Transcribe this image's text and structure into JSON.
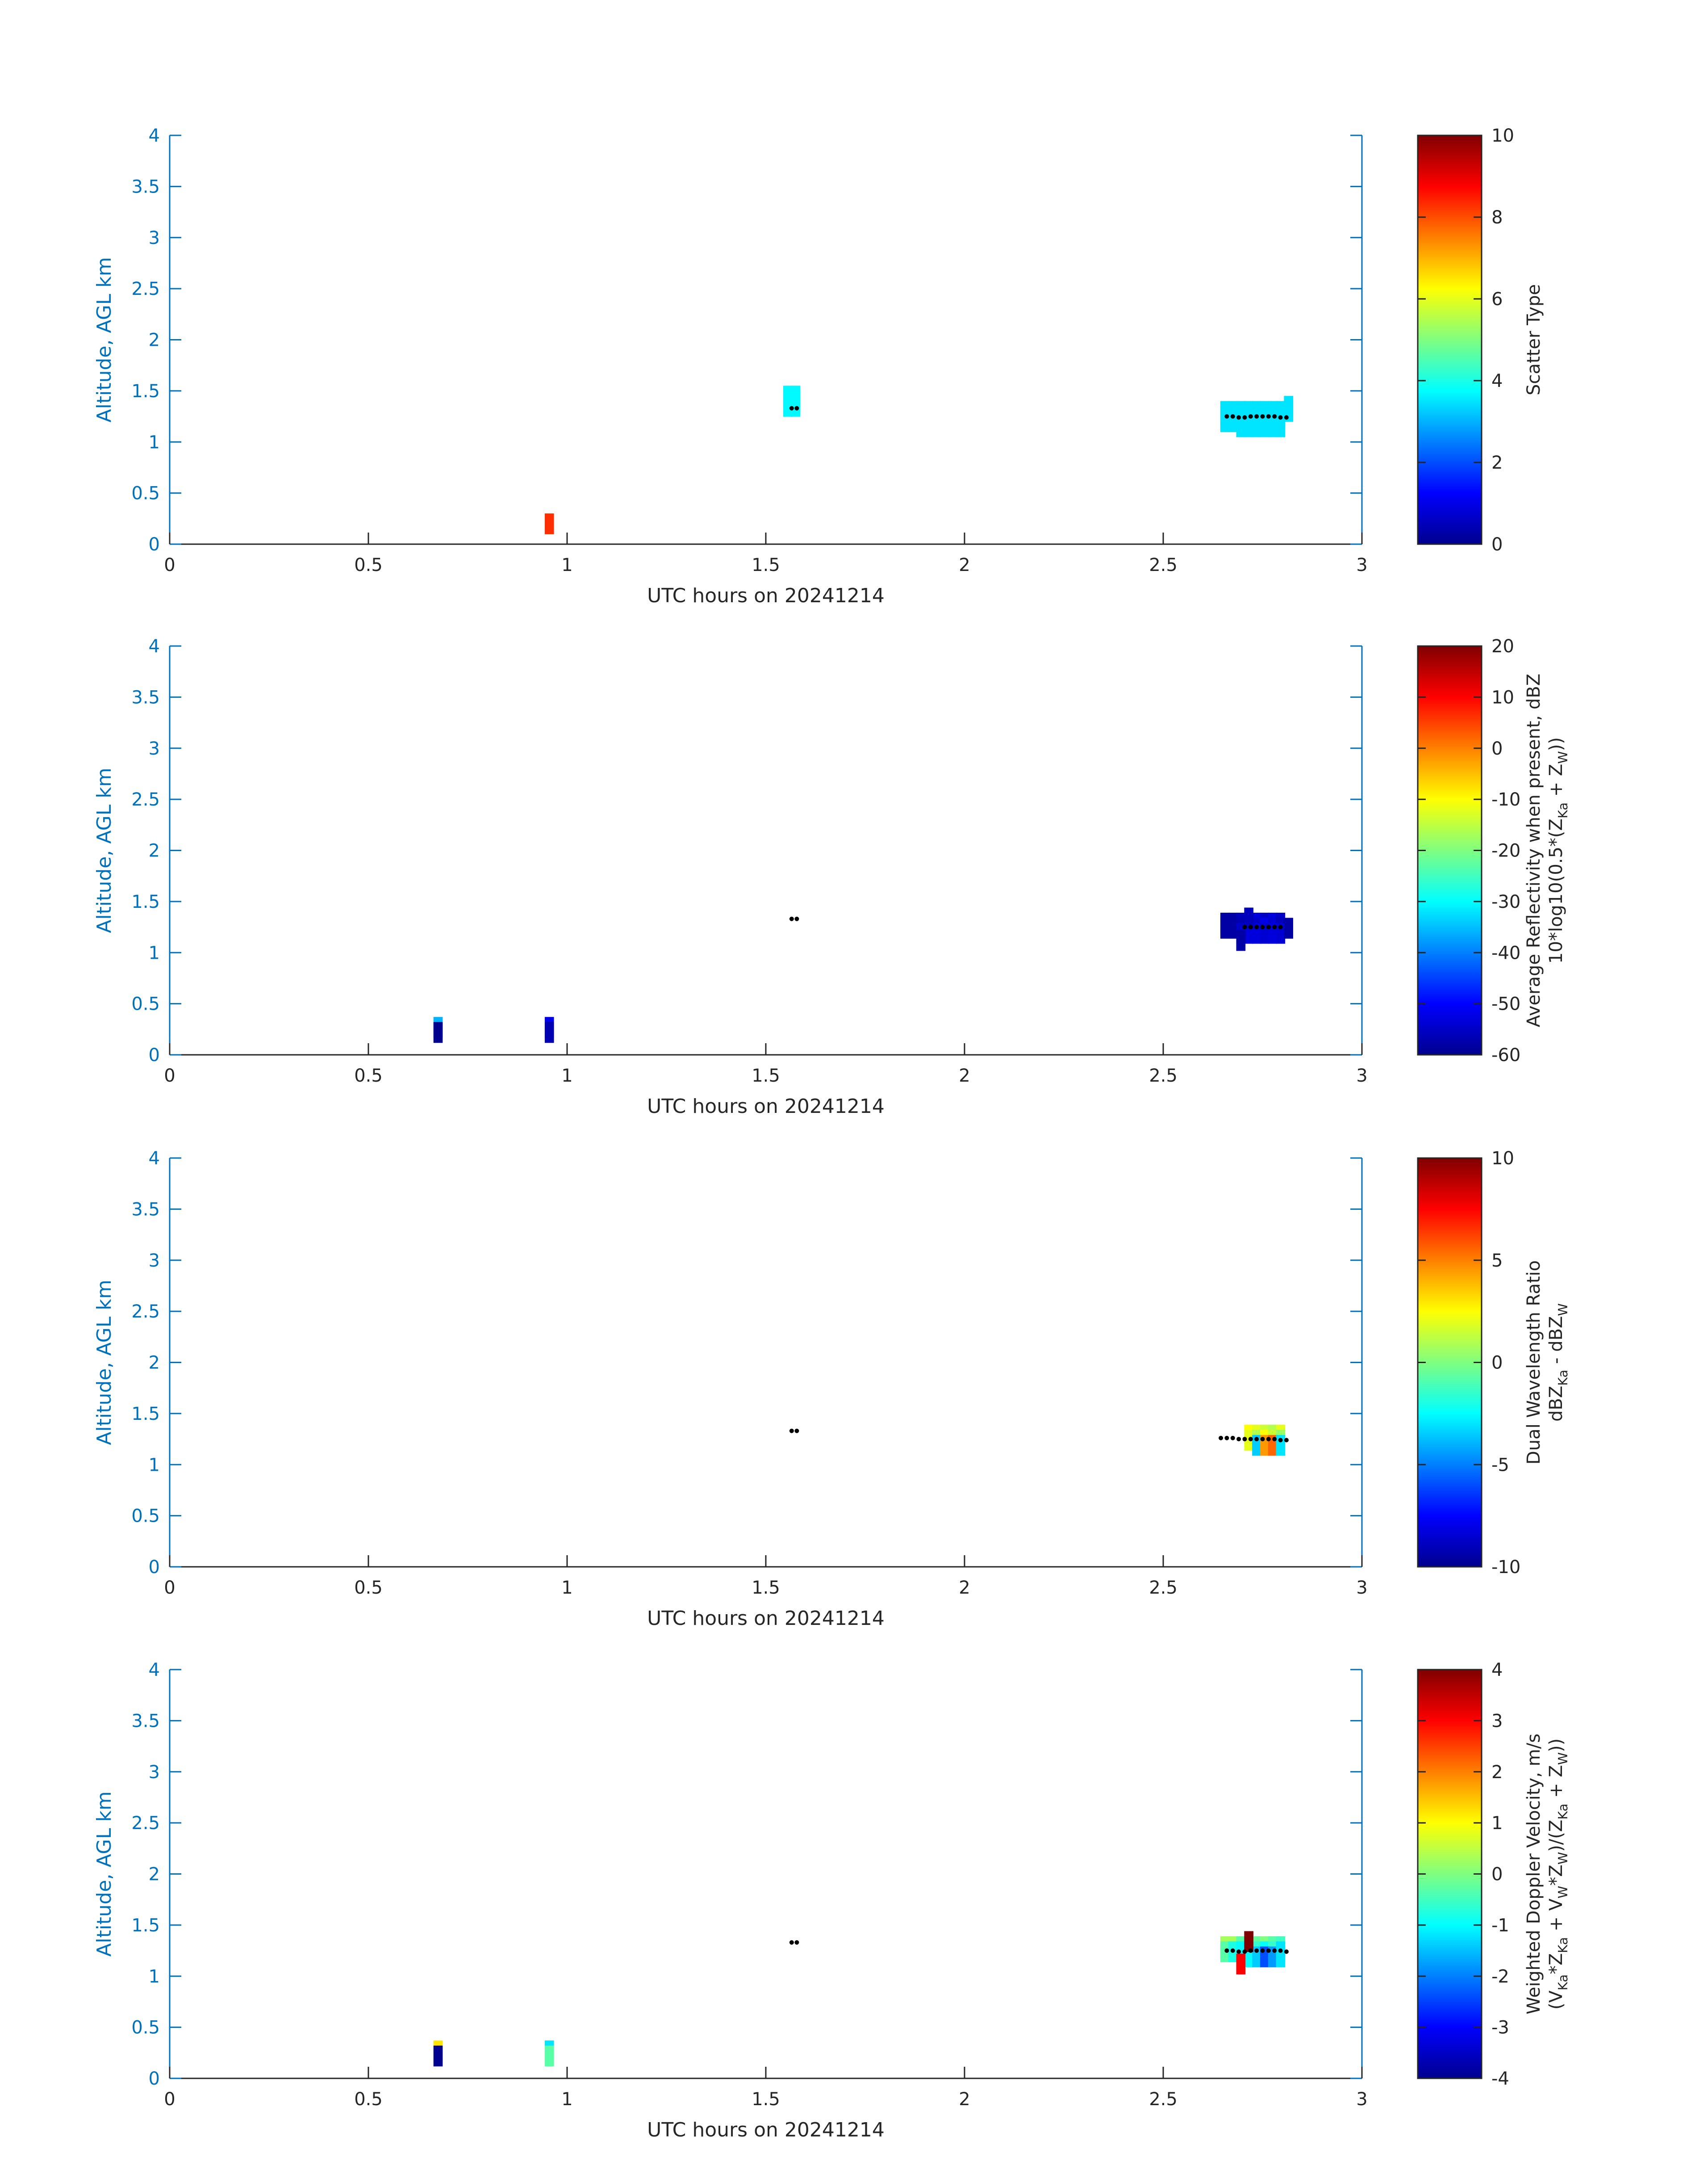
{
  "figure_date": "20241214",
  "chart_data": [
    {
      "type": "heatmap",
      "title": "",
      "xlabel": "UTC hours on 20241214",
      "ylabel": "Altitude, AGL km",
      "xlim": [
        0,
        3
      ],
      "ylim": [
        0,
        4
      ],
      "xticks": [
        "0",
        "0.5",
        "1",
        "1.5",
        "2",
        "2.5",
        "3"
      ],
      "yticks": [
        "0",
        "0.5",
        "1",
        "1.5",
        "2",
        "2.5",
        "3",
        "3.5",
        "4"
      ],
      "colorbar": {
        "label_lines": [
          "Scatter Type"
        ],
        "clim": [
          0,
          10
        ],
        "ticks": [
          "0",
          "2",
          "4",
          "6",
          "8",
          "10"
        ]
      },
      "cells": [
        {
          "t": 0.955,
          "z": 0.2,
          "v": 8.3
        },
        {
          "t": 1.555,
          "z": 1.45,
          "v": 3.7
        },
        {
          "t": 1.575,
          "z": 1.45,
          "v": 3.7
        },
        {
          "t": 1.555,
          "z": 1.4,
          "v": 3.7
        },
        {
          "t": 1.575,
          "z": 1.4,
          "v": 3.7
        },
        {
          "t": 1.555,
          "z": 1.35,
          "v": 3.7
        },
        {
          "t": 1.575,
          "z": 1.35,
          "v": 3.7
        },
        {
          "t": 2.655,
          "z": 1.3,
          "v": 3.5
        },
        {
          "t": 2.675,
          "z": 1.3,
          "v": 3.5
        },
        {
          "t": 2.695,
          "z": 1.3,
          "v": 3.5
        },
        {
          "t": 2.715,
          "z": 1.3,
          "v": 3.5
        },
        {
          "t": 2.735,
          "z": 1.3,
          "v": 3.5
        },
        {
          "t": 2.755,
          "z": 1.3,
          "v": 3.5
        },
        {
          "t": 2.775,
          "z": 1.3,
          "v": 3.5
        },
        {
          "t": 2.795,
          "z": 1.3,
          "v": 3.5
        },
        {
          "t": 2.655,
          "z": 1.25,
          "v": 3.5
        },
        {
          "t": 2.675,
          "z": 1.25,
          "v": 3.5
        },
        {
          "t": 2.695,
          "z": 1.25,
          "v": 3.5
        },
        {
          "t": 2.715,
          "z": 1.25,
          "v": 3.5
        },
        {
          "t": 2.735,
          "z": 1.25,
          "v": 3.5
        },
        {
          "t": 2.755,
          "z": 1.25,
          "v": 3.5
        },
        {
          "t": 2.775,
          "z": 1.25,
          "v": 3.5
        },
        {
          "t": 2.795,
          "z": 1.25,
          "v": 3.5
        },
        {
          "t": 2.655,
          "z": 1.2,
          "v": 3.5
        },
        {
          "t": 2.675,
          "z": 1.2,
          "v": 3.5
        },
        {
          "t": 2.695,
          "z": 1.2,
          "v": 3.5
        },
        {
          "t": 2.715,
          "z": 1.2,
          "v": 3.5
        },
        {
          "t": 2.735,
          "z": 1.2,
          "v": 3.5
        },
        {
          "t": 2.755,
          "z": 1.2,
          "v": 3.5
        },
        {
          "t": 2.775,
          "z": 1.2,
          "v": 3.5
        },
        {
          "t": 2.795,
          "z": 1.2,
          "v": 3.5
        },
        {
          "t": 2.695,
          "z": 1.15,
          "v": 3.5
        },
        {
          "t": 2.715,
          "z": 1.15,
          "v": 3.5
        },
        {
          "t": 2.735,
          "z": 1.15,
          "v": 3.5
        },
        {
          "t": 2.755,
          "z": 1.15,
          "v": 3.5
        },
        {
          "t": 2.775,
          "z": 1.15,
          "v": 3.5
        },
        {
          "t": 2.795,
          "z": 1.15,
          "v": 3.5
        },
        {
          "t": 2.815,
          "z": 1.35,
          "v": 3.5
        },
        {
          "t": 2.815,
          "z": 1.3,
          "v": 3.5
        }
      ],
      "cloud_base_points": [
        {
          "t": 1.565,
          "z": 1.33
        },
        {
          "t": 1.578,
          "z": 1.33
        },
        {
          "t": 2.66,
          "z": 1.25
        },
        {
          "t": 2.675,
          "z": 1.25
        },
        {
          "t": 2.69,
          "z": 1.24
        },
        {
          "t": 2.705,
          "z": 1.24
        },
        {
          "t": 2.72,
          "z": 1.25
        },
        {
          "t": 2.735,
          "z": 1.25
        },
        {
          "t": 2.75,
          "z": 1.25
        },
        {
          "t": 2.765,
          "z": 1.25
        },
        {
          "t": 2.78,
          "z": 1.25
        },
        {
          "t": 2.795,
          "z": 1.24
        },
        {
          "t": 2.81,
          "z": 1.24
        }
      ]
    },
    {
      "type": "heatmap",
      "title": "",
      "xlabel": "UTC hours on 20241214",
      "ylabel": "Altitude, AGL km",
      "xlim": [
        0,
        3
      ],
      "ylim": [
        0,
        4
      ],
      "xticks": [
        "0",
        "0.5",
        "1",
        "1.5",
        "2",
        "2.5",
        "3"
      ],
      "yticks": [
        "0",
        "0.5",
        "1",
        "1.5",
        "2",
        "2.5",
        "3",
        "3.5",
        "4"
      ],
      "colorbar": {
        "label_lines": [
          "Average Reflectivity when present, dBZ",
          "10*log10(0.5*(Z_Ka + Z_W))"
        ],
        "clim": [
          -60,
          20
        ],
        "ticks": [
          "-60",
          "-50",
          "-40",
          "-30",
          "-20",
          "-10",
          "0",
          "10",
          "20"
        ]
      },
      "cells": [
        {
          "t": 0.675,
          "z": 0.27,
          "v": -36
        },
        {
          "t": 0.675,
          "z": 0.22,
          "v": -60
        },
        {
          "t": 0.955,
          "z": 0.27,
          "v": -52
        },
        {
          "t": 0.955,
          "z": 0.22,
          "v": -57
        },
        {
          "t": 2.655,
          "z": 1.29,
          "v": -58
        },
        {
          "t": 2.675,
          "z": 1.29,
          "v": -58
        },
        {
          "t": 2.695,
          "z": 1.29,
          "v": -56
        },
        {
          "t": 2.715,
          "z": 1.29,
          "v": -53
        },
        {
          "t": 2.735,
          "z": 1.29,
          "v": -53
        },
        {
          "t": 2.755,
          "z": 1.29,
          "v": -55
        },
        {
          "t": 2.775,
          "z": 1.29,
          "v": -53
        },
        {
          "t": 2.795,
          "z": 1.29,
          "v": -55
        },
        {
          "t": 2.655,
          "z": 1.24,
          "v": -58
        },
        {
          "t": 2.675,
          "z": 1.24,
          "v": -58
        },
        {
          "t": 2.695,
          "z": 1.24,
          "v": -57
        },
        {
          "t": 2.715,
          "z": 1.24,
          "v": -51
        },
        {
          "t": 2.735,
          "z": 1.24,
          "v": -55
        },
        {
          "t": 2.755,
          "z": 1.24,
          "v": -52
        },
        {
          "t": 2.775,
          "z": 1.24,
          "v": -54
        },
        {
          "t": 2.795,
          "z": 1.24,
          "v": -56
        },
        {
          "t": 2.695,
          "z": 1.19,
          "v": -55
        },
        {
          "t": 2.715,
          "z": 1.19,
          "v": -53
        },
        {
          "t": 2.735,
          "z": 1.19,
          "v": -53
        },
        {
          "t": 2.755,
          "z": 1.19,
          "v": -54
        },
        {
          "t": 2.775,
          "z": 1.19,
          "v": -53
        },
        {
          "t": 2.795,
          "z": 1.19,
          "v": -54
        },
        {
          "t": 2.715,
          "z": 1.34,
          "v": -56
        },
        {
          "t": 2.695,
          "z": 1.12,
          "v": -58
        },
        {
          "t": 2.815,
          "z": 1.24,
          "v": -58
        }
      ],
      "cloud_base_points": [
        {
          "t": 1.565,
          "z": 1.33
        },
        {
          "t": 1.578,
          "z": 1.33
        },
        {
          "t": 2.705,
          "z": 1.25
        },
        {
          "t": 2.72,
          "z": 1.25
        },
        {
          "t": 2.735,
          "z": 1.25
        },
        {
          "t": 2.75,
          "z": 1.25
        },
        {
          "t": 2.765,
          "z": 1.25
        },
        {
          "t": 2.78,
          "z": 1.25
        },
        {
          "t": 2.795,
          "z": 1.25
        }
      ]
    },
    {
      "type": "heatmap",
      "title": "",
      "xlabel": "UTC hours on 20241214",
      "ylabel": "Altitude, AGL km",
      "xlim": [
        0,
        3
      ],
      "ylim": [
        0,
        4
      ],
      "xticks": [
        "0",
        "0.5",
        "1",
        "1.5",
        "2",
        "2.5",
        "3"
      ],
      "yticks": [
        "0",
        "0.5",
        "1",
        "1.5",
        "2",
        "2.5",
        "3",
        "3.5",
        "4"
      ],
      "colorbar": {
        "label_lines": [
          "Dual Wavelength Ratio",
          "dBZ_Ka - dBZ_W"
        ],
        "clim": [
          -10,
          10
        ],
        "ticks": [
          "-10",
          "-5",
          "0",
          "5",
          "10"
        ]
      },
      "cells": [
        {
          "t": 2.715,
          "z": 1.29,
          "v": 2.5
        },
        {
          "t": 2.735,
          "z": 1.29,
          "v": 2.0
        },
        {
          "t": 2.755,
          "z": 1.29,
          "v": 1.5
        },
        {
          "t": 2.775,
          "z": 1.29,
          "v": 1.0
        },
        {
          "t": 2.795,
          "z": 1.29,
          "v": 2.0
        },
        {
          "t": 2.715,
          "z": 1.24,
          "v": 2.0
        },
        {
          "t": 2.735,
          "z": 1.24,
          "v": 1.0
        },
        {
          "t": 2.755,
          "z": 1.24,
          "v": 2.5
        },
        {
          "t": 2.775,
          "z": 1.24,
          "v": 1.5
        },
        {
          "t": 2.795,
          "z": 1.24,
          "v": 0.5
        },
        {
          "t": 2.735,
          "z": 1.19,
          "v": -3.5
        },
        {
          "t": 2.755,
          "z": 1.19,
          "v": 4.5
        },
        {
          "t": 2.775,
          "z": 1.19,
          "v": 5.5
        },
        {
          "t": 2.795,
          "z": 1.19,
          "v": -3.0
        }
      ],
      "cloud_base_points": [
        {
          "t": 1.565,
          "z": 1.33
        },
        {
          "t": 1.578,
          "z": 1.33
        },
        {
          "t": 2.645,
          "z": 1.26
        },
        {
          "t": 2.66,
          "z": 1.26
        },
        {
          "t": 2.675,
          "z": 1.26
        },
        {
          "t": 2.69,
          "z": 1.25
        },
        {
          "t": 2.705,
          "z": 1.25
        },
        {
          "t": 2.72,
          "z": 1.25
        },
        {
          "t": 2.735,
          "z": 1.25
        },
        {
          "t": 2.75,
          "z": 1.25
        },
        {
          "t": 2.765,
          "z": 1.25
        },
        {
          "t": 2.78,
          "z": 1.25
        },
        {
          "t": 2.795,
          "z": 1.24
        },
        {
          "t": 2.81,
          "z": 1.24
        }
      ]
    },
    {
      "type": "heatmap",
      "title": "",
      "xlabel": "UTC hours on 20241214",
      "ylabel": "Altitude, AGL km",
      "xlim": [
        0,
        3
      ],
      "ylim": [
        0,
        4
      ],
      "xticks": [
        "0",
        "0.5",
        "1",
        "1.5",
        "2",
        "2.5",
        "3"
      ],
      "yticks": [
        "0",
        "0.5",
        "1",
        "1.5",
        "2",
        "2.5",
        "3",
        "3.5",
        "4"
      ],
      "colorbar": {
        "label_lines": [
          "Weighted Doppler Velocity, m/s",
          "(V_Ka*Z_Ka + V_W*Z_W)/(Z_Ka + Z_W))"
        ],
        "clim": [
          -4,
          4
        ],
        "ticks": [
          "-4",
          "-3",
          "-2",
          "-1",
          "0",
          "1",
          "2",
          "3",
          "4"
        ]
      },
      "cells": [
        {
          "t": 0.675,
          "z": 0.27,
          "v": 1.2
        },
        {
          "t": 0.675,
          "z": 0.22,
          "v": -4.0
        },
        {
          "t": 0.955,
          "z": 0.27,
          "v": -1.2
        },
        {
          "t": 0.955,
          "z": 0.22,
          "v": -0.3
        },
        {
          "t": 2.655,
          "z": 1.29,
          "v": 0.3
        },
        {
          "t": 2.675,
          "z": 1.29,
          "v": 0.3
        },
        {
          "t": 2.695,
          "z": 1.29,
          "v": -0.3
        },
        {
          "t": 2.715,
          "z": 1.29,
          "v": -0.8
        },
        {
          "t": 2.735,
          "z": 1.29,
          "v": -0.2
        },
        {
          "t": 2.755,
          "z": 1.29,
          "v": 0.0
        },
        {
          "t": 2.775,
          "z": 1.29,
          "v": -0.3
        },
        {
          "t": 2.795,
          "z": 1.29,
          "v": -0.5
        },
        {
          "t": 2.655,
          "z": 1.24,
          "v": -0.3
        },
        {
          "t": 2.675,
          "z": 1.24,
          "v": -0.8
        },
        {
          "t": 2.695,
          "z": 1.24,
          "v": -1.0
        },
        {
          "t": 2.715,
          "z": 1.24,
          "v": -1.2
        },
        {
          "t": 2.735,
          "z": 1.24,
          "v": -0.6
        },
        {
          "t": 2.755,
          "z": 1.24,
          "v": -1.0
        },
        {
          "t": 2.775,
          "z": 1.24,
          "v": -0.6
        },
        {
          "t": 2.795,
          "z": 1.24,
          "v": -1.2
        },
        {
          "t": 2.715,
          "z": 1.19,
          "v": -1.0
        },
        {
          "t": 2.735,
          "z": 1.19,
          "v": -1.4
        },
        {
          "t": 2.755,
          "z": 1.19,
          "v": -2.4
        },
        {
          "t": 2.775,
          "z": 1.19,
          "v": -1.8
        },
        {
          "t": 2.795,
          "z": 1.19,
          "v": -1.2
        },
        {
          "t": 2.715,
          "z": 1.34,
          "v": 4.0
        },
        {
          "t": 2.695,
          "z": 1.12,
          "v": 3.0
        }
      ],
      "cloud_base_points": [
        {
          "t": 1.565,
          "z": 1.33
        },
        {
          "t": 1.578,
          "z": 1.33
        },
        {
          "t": 2.66,
          "z": 1.25
        },
        {
          "t": 2.675,
          "z": 1.25
        },
        {
          "t": 2.69,
          "z": 1.24
        },
        {
          "t": 2.705,
          "z": 1.24
        },
        {
          "t": 2.72,
          "z": 1.25
        },
        {
          "t": 2.735,
          "z": 1.25
        },
        {
          "t": 2.75,
          "z": 1.25
        },
        {
          "t": 2.765,
          "z": 1.25
        },
        {
          "t": 2.78,
          "z": 1.25
        },
        {
          "t": 2.795,
          "z": 1.25
        },
        {
          "t": 2.81,
          "z": 1.24
        }
      ]
    }
  ]
}
